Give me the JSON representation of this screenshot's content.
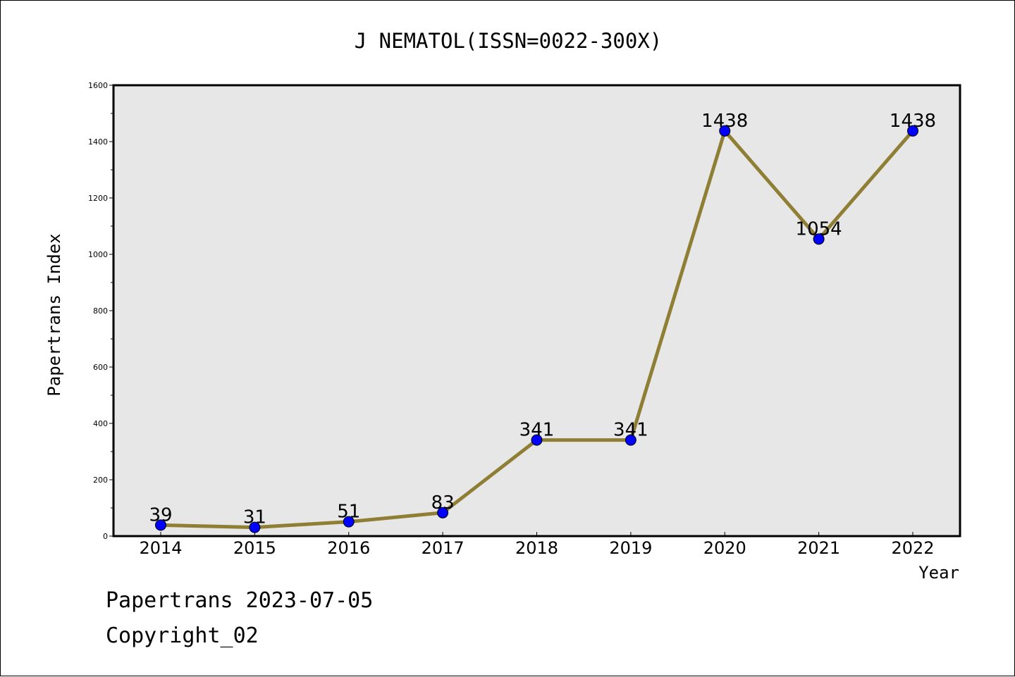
{
  "chart_data": {
    "type": "line",
    "title": "J NEMATOL(ISSN=0022-300X)",
    "xlabel": "Year",
    "ylabel": "Papertrans Index",
    "categories": [
      "2014",
      "2015",
      "2016",
      "2017",
      "2018",
      "2019",
      "2020",
      "2021",
      "2022"
    ],
    "series": [
      {
        "values": [
          39,
          31,
          51,
          83,
          341,
          341,
          1438,
          1054,
          1438
        ]
      }
    ],
    "value_labels": [
      "39",
      "31",
      "51",
      "83",
      "341",
      "341",
      "1438",
      "1054",
      "1438"
    ],
    "ylim": [
      0,
      1600
    ],
    "yticks": [
      0,
      200,
      400,
      600,
      800,
      1000,
      1200,
      1400,
      1600
    ],
    "ytick_labels": [
      "0",
      "200",
      "400",
      "600",
      "800",
      "1000",
      "1200",
      "1400",
      "1600"
    ],
    "grid": false,
    "plot_background": "#e7e7e7",
    "line_color": "#8f7f35",
    "marker_color": "#0000ff"
  },
  "footer": {
    "line1": "Papertrans 2023-07-05",
    "line2": "Copyright_02"
  }
}
